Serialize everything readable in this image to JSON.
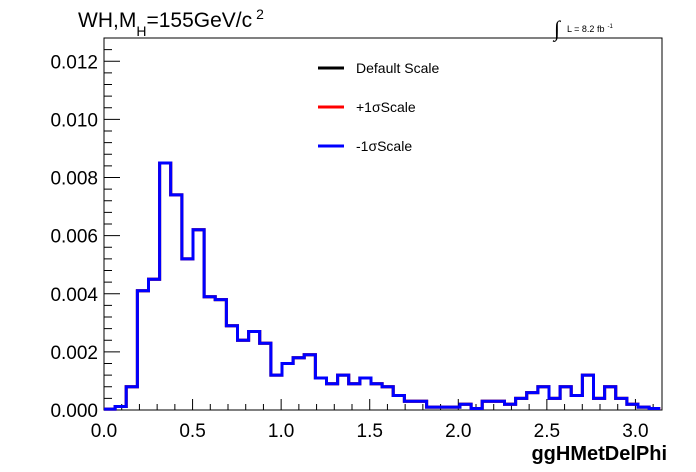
{
  "chart_data": {
    "type": "line",
    "title_parts": {
      "main": "WH,M",
      "subscript": "H",
      "rest": "=155GeV/c",
      "superscript": "2"
    },
    "lumi_label": {
      "integral_sign": "∫",
      "text": "L = 8.2 fb",
      "superscript": "-1"
    },
    "xlabel": "ggHMetDelPhi",
    "ylabel": "",
    "xlim": [
      0.0,
      3.15
    ],
    "ylim": [
      0.0,
      0.0128
    ],
    "x_ticks": [
      "0.0",
      "0.5",
      "1.0",
      "1.5",
      "2.0",
      "2.5",
      "3.0"
    ],
    "x_tick_values": [
      0.0,
      0.5,
      1.0,
      1.5,
      2.0,
      2.5,
      3.0
    ],
    "y_ticks": [
      "0.000",
      "0.002",
      "0.004",
      "0.006",
      "0.008",
      "0.010",
      "0.012"
    ],
    "y_tick_values": [
      0.0,
      0.002,
      0.004,
      0.006,
      0.008,
      0.01,
      0.012
    ],
    "bin_width": 0.0628,
    "bin_edges_start": 0.0,
    "series": [
      {
        "name": "Default Scale",
        "color": "#000000",
        "values": [
          3e-05,
          0.00012,
          0.0008,
          0.0041,
          0.0045,
          0.0085,
          0.0074,
          0.0052,
          0.0062,
          0.0039,
          0.0038,
          0.0029,
          0.0024,
          0.0027,
          0.0023,
          0.0012,
          0.0016,
          0.0018,
          0.0019,
          0.0011,
          0.0009,
          0.0012,
          0.0009,
          0.0011,
          0.0009,
          0.0008,
          0.0005,
          0.0003,
          0.0003,
          0.0001,
          0.0001,
          0.0001,
          0.0002,
          5e-05,
          0.0003,
          0.0003,
          0.0002,
          0.0004,
          0.0006,
          0.0008,
          0.0004,
          0.0008,
          0.0005,
          0.0012,
          0.0004,
          0.0008,
          0.0004,
          0.0002,
          0.0001,
          5e-05
        ]
      },
      {
        "name": "+1σScale",
        "color": "#ff0000",
        "values": [
          3e-05,
          0.00012,
          0.0008,
          0.0041,
          0.0045,
          0.0085,
          0.0074,
          0.0052,
          0.0062,
          0.0039,
          0.0038,
          0.0029,
          0.0024,
          0.0027,
          0.0023,
          0.0012,
          0.0016,
          0.0018,
          0.0019,
          0.0011,
          0.0009,
          0.0012,
          0.0009,
          0.0011,
          0.0009,
          0.0008,
          0.0005,
          0.0003,
          0.0003,
          0.0001,
          0.0001,
          0.0001,
          0.0002,
          5e-05,
          0.0003,
          0.0003,
          0.0002,
          0.0004,
          0.0006,
          0.0008,
          0.0004,
          0.0008,
          0.0005,
          0.0012,
          0.0004,
          0.0008,
          0.0004,
          0.0002,
          0.0001,
          5e-05
        ]
      },
      {
        "name": "-1σScale",
        "color": "#0000ff",
        "values": [
          3e-05,
          0.00012,
          0.0008,
          0.0041,
          0.0045,
          0.0085,
          0.0074,
          0.0052,
          0.0062,
          0.0039,
          0.0038,
          0.0029,
          0.0024,
          0.0027,
          0.0023,
          0.0012,
          0.0016,
          0.0018,
          0.0019,
          0.0011,
          0.0009,
          0.0012,
          0.0009,
          0.0011,
          0.0009,
          0.0008,
          0.0005,
          0.0003,
          0.0003,
          0.0001,
          0.0001,
          0.0001,
          0.0002,
          5e-05,
          0.0003,
          0.0003,
          0.0002,
          0.0004,
          0.0006,
          0.0008,
          0.0004,
          0.0008,
          0.0005,
          0.0012,
          0.0004,
          0.0008,
          0.0004,
          0.0002,
          0.0001,
          5e-05
        ]
      }
    ],
    "legend_placement": "top-center",
    "grid": false
  }
}
